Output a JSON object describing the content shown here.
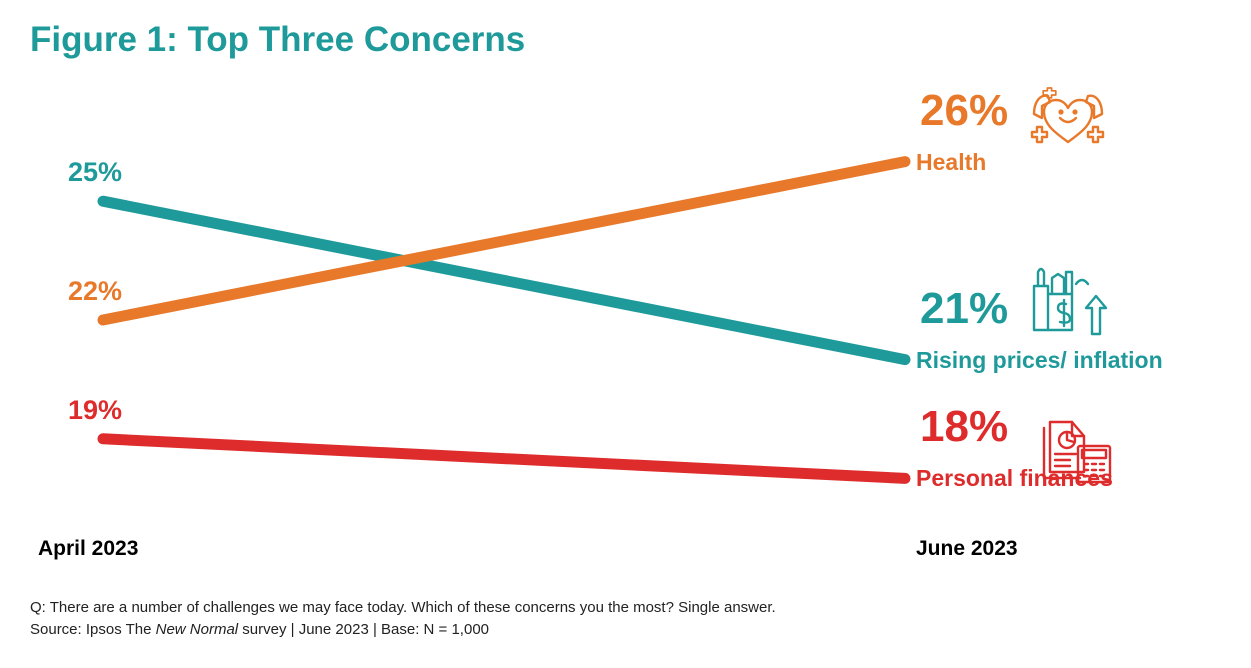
{
  "chart_data": {
    "type": "line",
    "title": "Figure 1: Top Three Concerns",
    "x": [
      "April 2023",
      "June 2023"
    ],
    "ylabel": "",
    "xlabel": "",
    "ylim": [
      17,
      27
    ],
    "series": [
      {
        "name": "Health",
        "values": [
          22,
          26
        ],
        "start_label": "22%",
        "end_label": "26%",
        "color": "#e8792b",
        "icon": "health-heart-icon"
      },
      {
        "name": "Rising prices/ inflation",
        "values": [
          25,
          21
        ],
        "start_label": "25%",
        "end_label": "21%",
        "color": "#1f9a9a",
        "icon": "grocery-price-icon"
      },
      {
        "name": "Personal finances",
        "values": [
          19,
          18
        ],
        "start_label": "19%",
        "end_label": "18%",
        "color": "#de2c2c",
        "icon": "finance-calculator-icon"
      }
    ]
  },
  "footnote": {
    "question": "Q: There are a number of challenges we may face today.  Which of these concerns you the most? Single answer.",
    "source_prefix": "Source: Ipsos The ",
    "source_italic": "New Normal",
    "source_suffix": " survey | June 2023 | Base: N = 1,000"
  }
}
